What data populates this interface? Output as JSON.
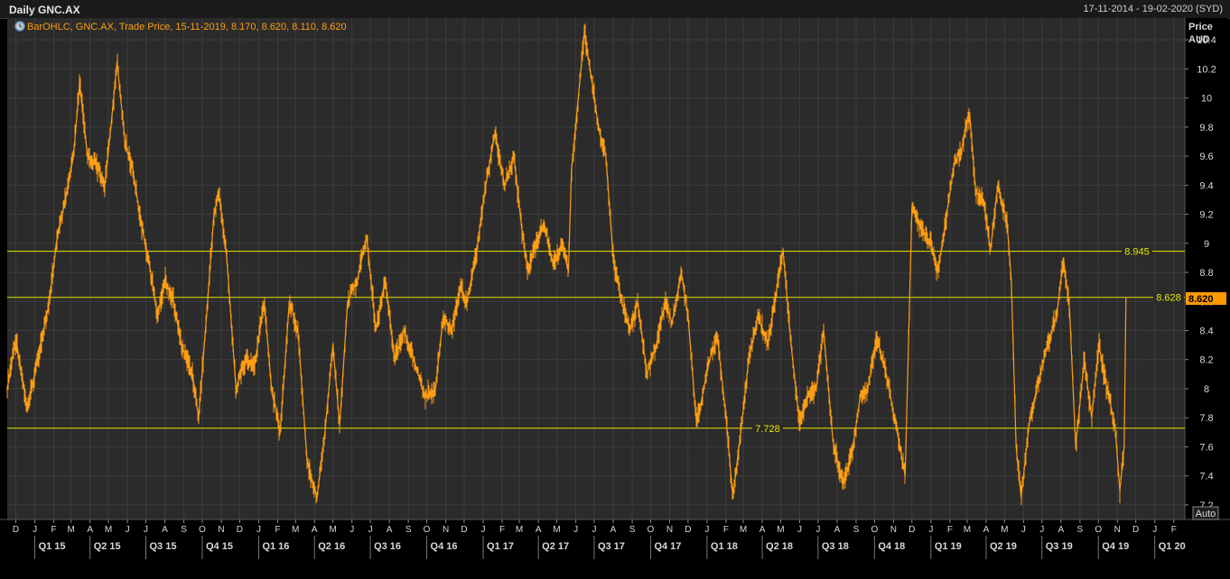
{
  "window": {
    "title": "Daily GNC.AX",
    "date_range": "17-11-2014 - 19-02-2020 (SYD)"
  },
  "legend": {
    "text": "BarOHLC, GNC.AX, Trade Price, 15-11-2019, 8.170, 8.620, 8.110, 8.620",
    "icon": "clock-icon"
  },
  "axis": {
    "price_label": "Price",
    "currency_label": "AUD",
    "auto_label": "Auto"
  },
  "colors": {
    "background": "#2b2b2b",
    "grid": "#3d3d3d",
    "series": "#ff9e12",
    "hline": "#e6e600",
    "last_price_bg": "#ff9900"
  },
  "chart_data": {
    "type": "line",
    "title": "Daily GNC.AX",
    "ylabel": "Price AUD",
    "ylim": [
      7.1,
      10.55
    ],
    "y_ticks": [
      "7.2",
      "7.4",
      "7.6",
      "7.8",
      "8",
      "8.2",
      "8.4",
      "8.6",
      "8.8",
      "9",
      "9.2",
      "9.4",
      "9.6",
      "9.8",
      "10",
      "10.2",
      "10.4"
    ],
    "xlim": [
      "2014-11-17",
      "2020-02-19"
    ],
    "month_ticks": [
      {
        "date": "2014-12-01",
        "label": "D"
      },
      {
        "date": "2015-01-01",
        "label": "J"
      },
      {
        "date": "2015-02-01",
        "label": "F"
      },
      {
        "date": "2015-03-01",
        "label": "M"
      },
      {
        "date": "2015-04-01",
        "label": "A"
      },
      {
        "date": "2015-05-01",
        "label": "M"
      },
      {
        "date": "2015-06-01",
        "label": "J"
      },
      {
        "date": "2015-07-01",
        "label": "J"
      },
      {
        "date": "2015-08-01",
        "label": "A"
      },
      {
        "date": "2015-09-01",
        "label": "S"
      },
      {
        "date": "2015-10-01",
        "label": "O"
      },
      {
        "date": "2015-11-01",
        "label": "N"
      },
      {
        "date": "2015-12-01",
        "label": "D"
      },
      {
        "date": "2016-01-01",
        "label": "J"
      },
      {
        "date": "2016-02-01",
        "label": "F"
      },
      {
        "date": "2016-03-01",
        "label": "M"
      },
      {
        "date": "2016-04-01",
        "label": "A"
      },
      {
        "date": "2016-05-01",
        "label": "M"
      },
      {
        "date": "2016-06-01",
        "label": "J"
      },
      {
        "date": "2016-07-01",
        "label": "J"
      },
      {
        "date": "2016-08-01",
        "label": "A"
      },
      {
        "date": "2016-09-01",
        "label": "S"
      },
      {
        "date": "2016-10-01",
        "label": "O"
      },
      {
        "date": "2016-11-01",
        "label": "N"
      },
      {
        "date": "2016-12-01",
        "label": "D"
      },
      {
        "date": "2017-01-01",
        "label": "J"
      },
      {
        "date": "2017-02-01",
        "label": "F"
      },
      {
        "date": "2017-03-01",
        "label": "M"
      },
      {
        "date": "2017-04-01",
        "label": "A"
      },
      {
        "date": "2017-05-01",
        "label": "M"
      },
      {
        "date": "2017-06-01",
        "label": "J"
      },
      {
        "date": "2017-07-01",
        "label": "J"
      },
      {
        "date": "2017-08-01",
        "label": "A"
      },
      {
        "date": "2017-09-01",
        "label": "S"
      },
      {
        "date": "2017-10-01",
        "label": "O"
      },
      {
        "date": "2017-11-01",
        "label": "N"
      },
      {
        "date": "2017-12-01",
        "label": "D"
      },
      {
        "date": "2018-01-01",
        "label": "J"
      },
      {
        "date": "2018-02-01",
        "label": "F"
      },
      {
        "date": "2018-03-01",
        "label": "M"
      },
      {
        "date": "2018-04-01",
        "label": "A"
      },
      {
        "date": "2018-05-01",
        "label": "M"
      },
      {
        "date": "2018-06-01",
        "label": "J"
      },
      {
        "date": "2018-07-01",
        "label": "J"
      },
      {
        "date": "2018-08-01",
        "label": "A"
      },
      {
        "date": "2018-09-01",
        "label": "S"
      },
      {
        "date": "2018-10-01",
        "label": "O"
      },
      {
        "date": "2018-11-01",
        "label": "N"
      },
      {
        "date": "2018-12-01",
        "label": "D"
      },
      {
        "date": "2019-01-01",
        "label": "J"
      },
      {
        "date": "2019-02-01",
        "label": "F"
      },
      {
        "date": "2019-03-01",
        "label": "M"
      },
      {
        "date": "2019-04-01",
        "label": "A"
      },
      {
        "date": "2019-05-01",
        "label": "M"
      },
      {
        "date": "2019-06-01",
        "label": "J"
      },
      {
        "date": "2019-07-01",
        "label": "J"
      },
      {
        "date": "2019-08-01",
        "label": "A"
      },
      {
        "date": "2019-09-01",
        "label": "S"
      },
      {
        "date": "2019-10-01",
        "label": "O"
      },
      {
        "date": "2019-11-01",
        "label": "N"
      },
      {
        "date": "2019-12-01",
        "label": "D"
      },
      {
        "date": "2020-01-01",
        "label": "J"
      },
      {
        "date": "2020-02-01",
        "label": "F"
      }
    ],
    "quarter_ticks": [
      {
        "date": "2015-01-01",
        "label": "Q1 15"
      },
      {
        "date": "2015-04-01",
        "label": "Q2 15"
      },
      {
        "date": "2015-07-01",
        "label": "Q3 15"
      },
      {
        "date": "2015-10-01",
        "label": "Q4 15"
      },
      {
        "date": "2016-01-01",
        "label": "Q1 16"
      },
      {
        "date": "2016-04-01",
        "label": "Q2 16"
      },
      {
        "date": "2016-07-01",
        "label": "Q3 16"
      },
      {
        "date": "2016-10-01",
        "label": "Q4 16"
      },
      {
        "date": "2017-01-01",
        "label": "Q1 17"
      },
      {
        "date": "2017-04-01",
        "label": "Q2 17"
      },
      {
        "date": "2017-07-01",
        "label": "Q3 17"
      },
      {
        "date": "2017-10-01",
        "label": "Q4 17"
      },
      {
        "date": "2018-01-01",
        "label": "Q1 18"
      },
      {
        "date": "2018-04-01",
        "label": "Q2 18"
      },
      {
        "date": "2018-07-01",
        "label": "Q3 18"
      },
      {
        "date": "2018-10-01",
        "label": "Q4 18"
      },
      {
        "date": "2019-01-01",
        "label": "Q1 19"
      },
      {
        "date": "2019-04-01",
        "label": "Q2 19"
      },
      {
        "date": "2019-07-01",
        "label": "Q3 19"
      },
      {
        "date": "2019-10-01",
        "label": "Q4 19"
      },
      {
        "date": "2020-01-01",
        "label": "Q1 20"
      }
    ],
    "series": [
      {
        "name": "GNC.AX",
        "points": [
          [
            "2014-11-17",
            8.0
          ],
          [
            "2014-12-01",
            8.35
          ],
          [
            "2014-12-20",
            7.85
          ],
          [
            "2015-01-10",
            8.3
          ],
          [
            "2015-01-25",
            8.6
          ],
          [
            "2015-02-05",
            9.0
          ],
          [
            "2015-02-20",
            9.3
          ],
          [
            "2015-03-05",
            9.6
          ],
          [
            "2015-03-15",
            10.1
          ],
          [
            "2015-03-28",
            9.6
          ],
          [
            "2015-04-10",
            9.55
          ],
          [
            "2015-04-25",
            9.4
          ],
          [
            "2015-05-05",
            9.8
          ],
          [
            "2015-05-15",
            10.25
          ],
          [
            "2015-05-28",
            9.7
          ],
          [
            "2015-06-10",
            9.5
          ],
          [
            "2015-06-25",
            9.1
          ],
          [
            "2015-07-05",
            8.9
          ],
          [
            "2015-07-20",
            8.5
          ],
          [
            "2015-08-01",
            8.75
          ],
          [
            "2015-08-15",
            8.6
          ],
          [
            "2015-08-28",
            8.3
          ],
          [
            "2015-09-15",
            8.1
          ],
          [
            "2015-09-25",
            7.8
          ],
          [
            "2015-10-08",
            8.5
          ],
          [
            "2015-10-20",
            9.2
          ],
          [
            "2015-10-28",
            9.35
          ],
          [
            "2015-11-10",
            8.9
          ],
          [
            "2015-11-25",
            8.0
          ],
          [
            "2015-12-10",
            8.2
          ],
          [
            "2015-12-25",
            8.15
          ],
          [
            "2016-01-10",
            8.6
          ],
          [
            "2016-01-22",
            8.0
          ],
          [
            "2016-02-05",
            7.7
          ],
          [
            "2016-02-20",
            8.6
          ],
          [
            "2016-03-05",
            8.4
          ],
          [
            "2016-03-20",
            7.5
          ],
          [
            "2016-04-05",
            7.25
          ],
          [
            "2016-04-18",
            7.7
          ],
          [
            "2016-05-01",
            8.3
          ],
          [
            "2016-05-12",
            7.75
          ],
          [
            "2016-05-25",
            8.6
          ],
          [
            "2016-06-10",
            8.75
          ],
          [
            "2016-06-25",
            9.05
          ],
          [
            "2016-07-10",
            8.4
          ],
          [
            "2016-07-25",
            8.75
          ],
          [
            "2016-08-10",
            8.2
          ],
          [
            "2016-08-25",
            8.4
          ],
          [
            "2016-09-10",
            8.2
          ],
          [
            "2016-09-28",
            7.95
          ],
          [
            "2016-10-15",
            8.0
          ],
          [
            "2016-10-28",
            8.5
          ],
          [
            "2016-11-10",
            8.4
          ],
          [
            "2016-11-25",
            8.7
          ],
          [
            "2016-12-05",
            8.6
          ],
          [
            "2016-12-20",
            8.9
          ],
          [
            "2017-01-05",
            9.4
          ],
          [
            "2017-01-20",
            9.75
          ],
          [
            "2017-02-05",
            9.4
          ],
          [
            "2017-02-20",
            9.6
          ],
          [
            "2017-03-05",
            9.1
          ],
          [
            "2017-03-15",
            8.8
          ],
          [
            "2017-03-28",
            9.0
          ],
          [
            "2017-04-10",
            9.15
          ],
          [
            "2017-04-25",
            8.85
          ],
          [
            "2017-05-10",
            9.0
          ],
          [
            "2017-05-20",
            8.8
          ],
          [
            "2017-05-25",
            9.5
          ],
          [
            "2017-06-05",
            10.0
          ],
          [
            "2017-06-15",
            10.45
          ],
          [
            "2017-06-28",
            10.1
          ],
          [
            "2017-07-08",
            9.8
          ],
          [
            "2017-07-20",
            9.6
          ],
          [
            "2017-08-01",
            8.9
          ],
          [
            "2017-08-15",
            8.6
          ],
          [
            "2017-08-28",
            8.4
          ],
          [
            "2017-09-10",
            8.6
          ],
          [
            "2017-09-25",
            8.1
          ],
          [
            "2017-10-10",
            8.3
          ],
          [
            "2017-10-25",
            8.6
          ],
          [
            "2017-11-05",
            8.45
          ],
          [
            "2017-11-20",
            8.8
          ],
          [
            "2017-12-01",
            8.5
          ],
          [
            "2017-12-15",
            7.75
          ],
          [
            "2018-01-05",
            8.2
          ],
          [
            "2018-01-18",
            8.35
          ],
          [
            "2018-02-01",
            7.8
          ],
          [
            "2018-02-12",
            7.25
          ],
          [
            "2018-02-25",
            7.7
          ],
          [
            "2018-03-10",
            8.2
          ],
          [
            "2018-03-25",
            8.5
          ],
          [
            "2018-04-10",
            8.3
          ],
          [
            "2018-04-25",
            8.7
          ],
          [
            "2018-05-05",
            8.95
          ],
          [
            "2018-05-18",
            8.3
          ],
          [
            "2018-06-01",
            7.75
          ],
          [
            "2018-06-15",
            7.95
          ],
          [
            "2018-06-28",
            8.0
          ],
          [
            "2018-07-10",
            8.4
          ],
          [
            "2018-07-25",
            7.65
          ],
          [
            "2018-08-10",
            7.35
          ],
          [
            "2018-08-25",
            7.55
          ],
          [
            "2018-09-08",
            7.95
          ],
          [
            "2018-09-20",
            8.0
          ],
          [
            "2018-10-05",
            8.35
          ],
          [
            "2018-10-20",
            8.1
          ],
          [
            "2018-11-05",
            7.75
          ],
          [
            "2018-11-20",
            7.4
          ],
          [
            "2018-12-01",
            9.25
          ],
          [
            "2018-12-15",
            9.1
          ],
          [
            "2019-01-01",
            9.0
          ],
          [
            "2019-01-12",
            8.8
          ],
          [
            "2019-01-25",
            9.15
          ],
          [
            "2019-02-08",
            9.55
          ],
          [
            "2019-02-20",
            9.65
          ],
          [
            "2019-03-05",
            9.9
          ],
          [
            "2019-03-15",
            9.35
          ],
          [
            "2019-03-28",
            9.3
          ],
          [
            "2019-04-08",
            8.95
          ],
          [
            "2019-04-20",
            9.4
          ],
          [
            "2019-05-05",
            9.15
          ],
          [
            "2019-05-12",
            8.75
          ],
          [
            "2019-05-20",
            7.6
          ],
          [
            "2019-05-28",
            7.25
          ],
          [
            "2019-06-10",
            7.75
          ],
          [
            "2019-06-25",
            8.05
          ],
          [
            "2019-07-10",
            8.3
          ],
          [
            "2019-07-25",
            8.5
          ],
          [
            "2019-08-05",
            8.9
          ],
          [
            "2019-08-15",
            8.55
          ],
          [
            "2019-08-25",
            7.6
          ],
          [
            "2019-09-08",
            8.2
          ],
          [
            "2019-09-20",
            7.8
          ],
          [
            "2019-10-02",
            8.3
          ],
          [
            "2019-10-15",
            8.0
          ],
          [
            "2019-10-28",
            7.75
          ],
          [
            "2019-11-05",
            7.3
          ],
          [
            "2019-11-12",
            7.6
          ],
          [
            "2019-11-15",
            8.62
          ]
        ]
      }
    ],
    "horizontal_lines": [
      {
        "value": 8.945,
        "label": "8.945"
      },
      {
        "value": 8.628,
        "label": "8.628"
      },
      {
        "value": 7.728,
        "label": "7.728"
      }
    ],
    "last_price": {
      "value": 8.62,
      "label": "8.620"
    }
  }
}
